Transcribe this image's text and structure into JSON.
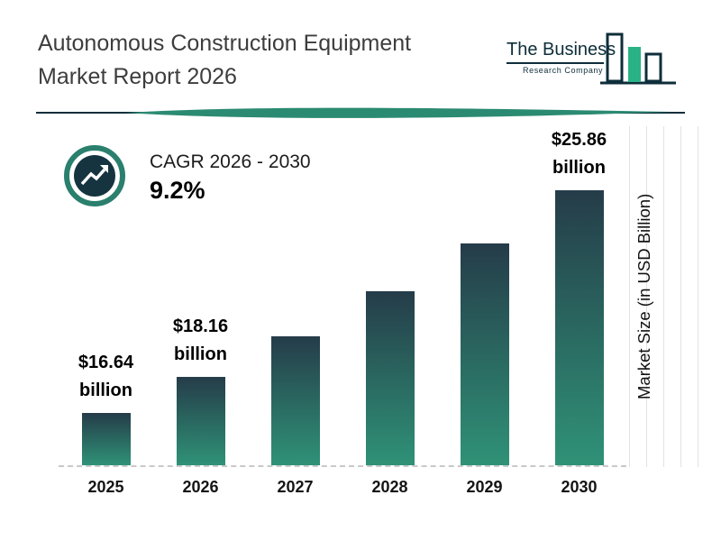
{
  "title": {
    "line1": "Autonomous Construction Equipment",
    "line2": "Market Report 2026"
  },
  "logo": {
    "name_top": "The Business",
    "name_bottom": "Research Company"
  },
  "cagr": {
    "label": "CAGR 2026 - 2030",
    "value": "9.2%"
  },
  "colors": {
    "bar_top": "#253c49",
    "bar_bottom": "#2f9277",
    "teal_accent": "#2b8a72",
    "dark_navy": "#0d2e3a"
  },
  "chart_data": {
    "type": "bar",
    "title": "Autonomous Construction Equipment Market Report 2026",
    "categories": [
      "2025",
      "2026",
      "2027",
      "2028",
      "2029",
      "2030"
    ],
    "values": [
      16.64,
      18.16,
      19.83,
      21.66,
      23.65,
      25.86
    ],
    "unit": "USD billion",
    "value_labels": [
      [
        "$16.64",
        "billion"
      ],
      [
        "$18.16",
        "billion"
      ],
      null,
      null,
      null,
      [
        "$25.86",
        "billion"
      ]
    ],
    "ylabel": "Market Size (in USD Billion)",
    "ylim": [
      14.5,
      26.5
    ],
    "cagr_2026_2030": "9.2%",
    "grid": "light vertical gridlines at right, dashed baseline",
    "legend": "none"
  }
}
